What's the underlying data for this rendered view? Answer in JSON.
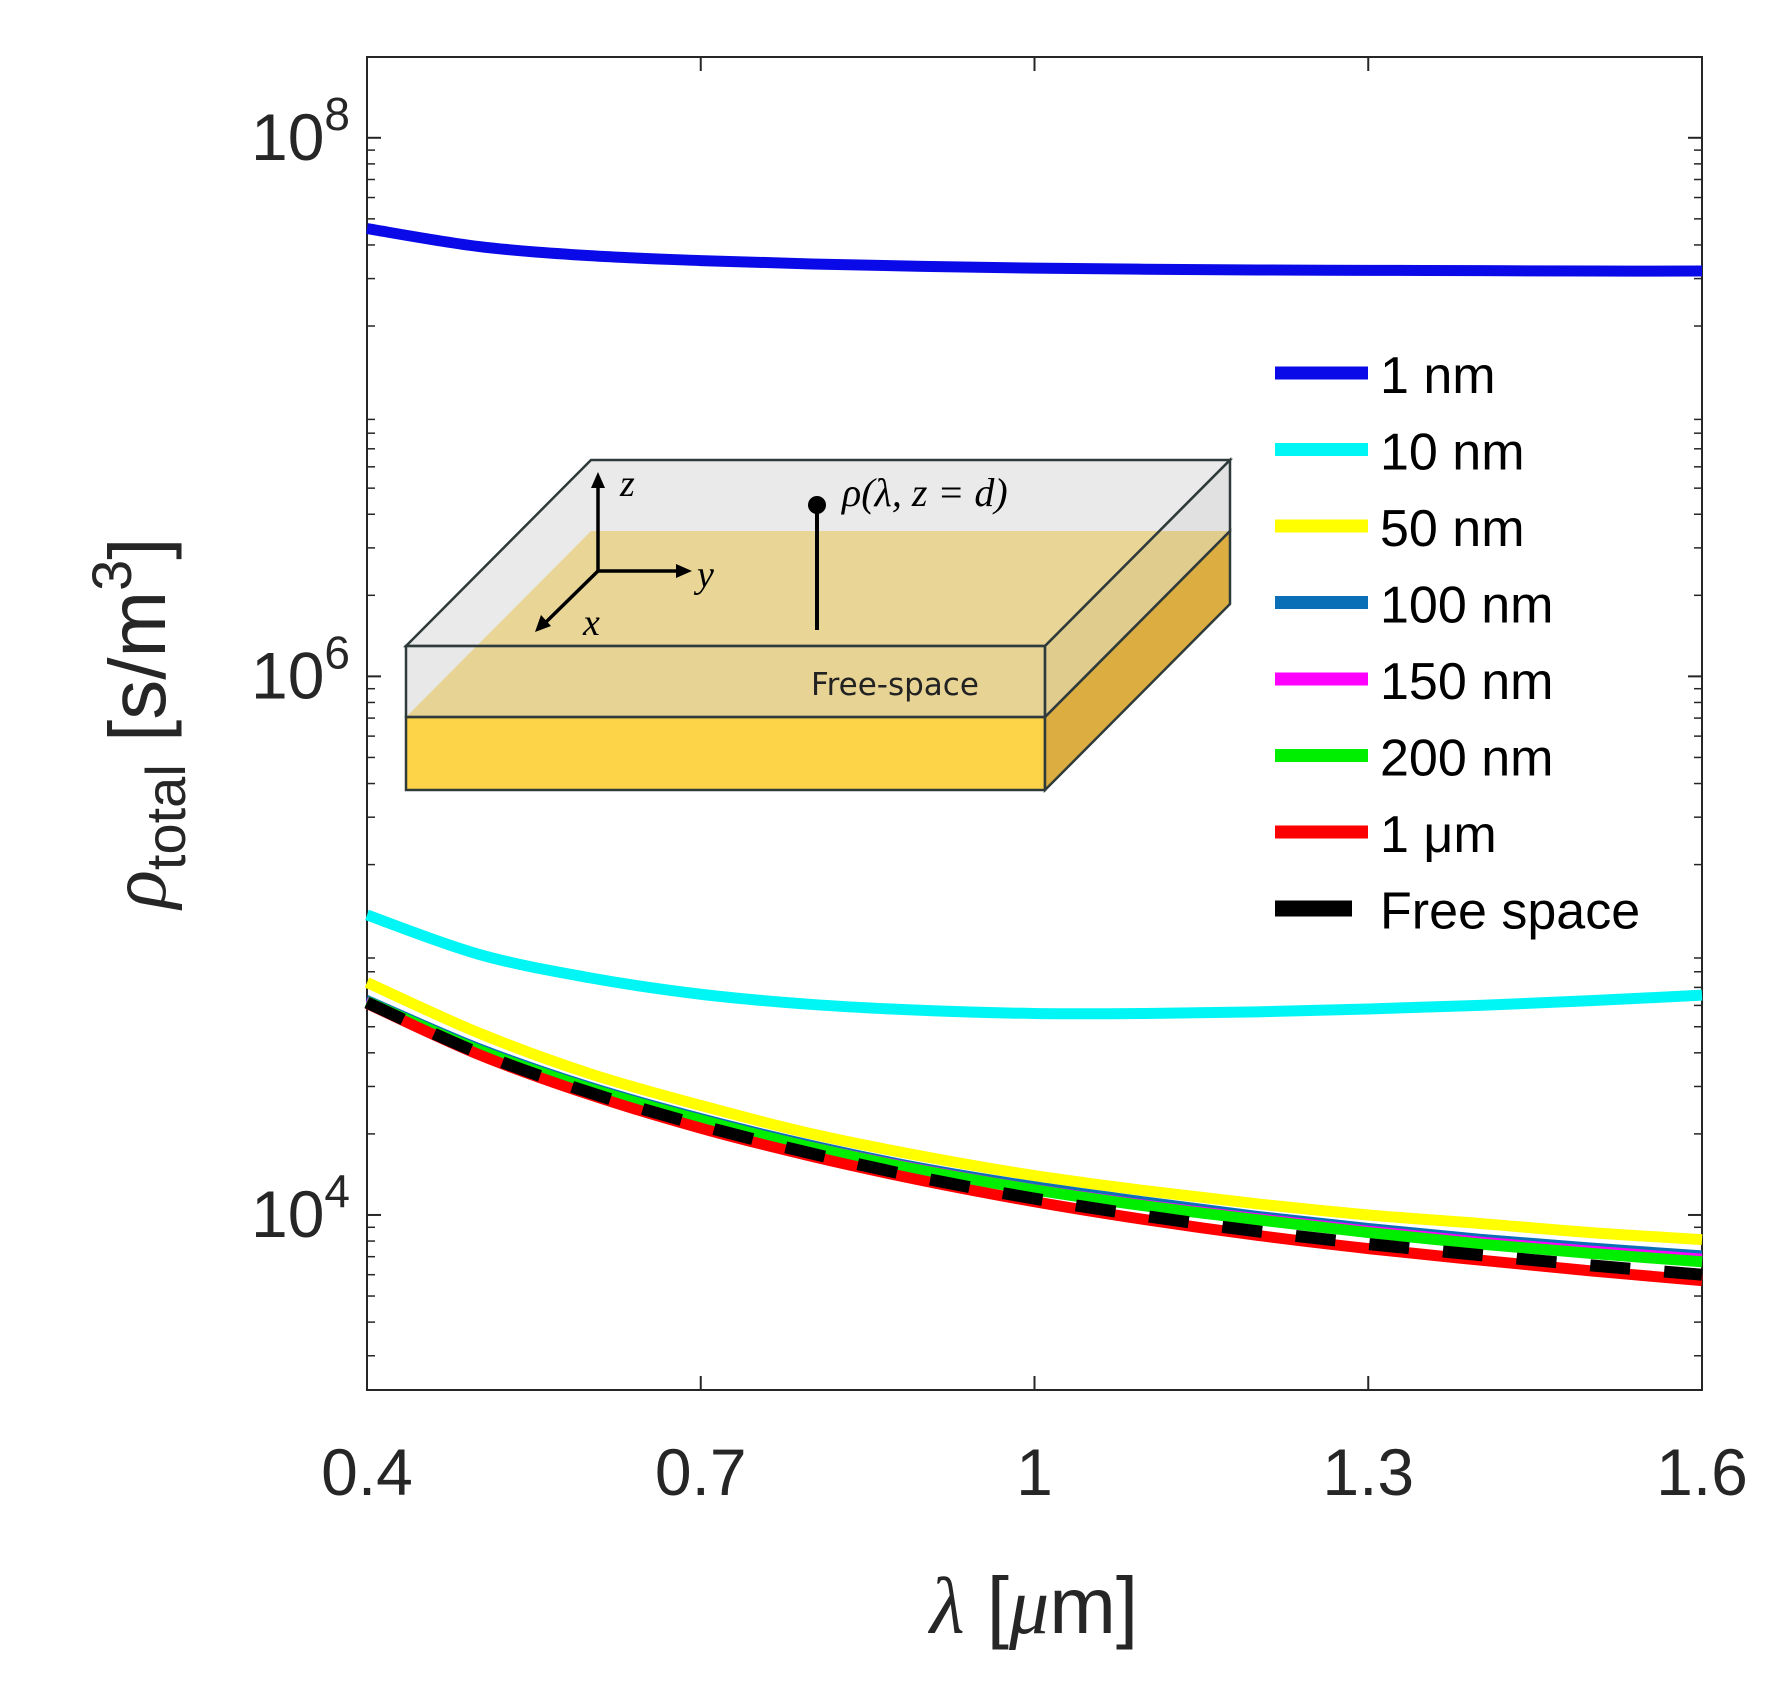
{
  "chart_data": {
    "type": "line",
    "title": "",
    "xlabel": {
      "symbol": "λ",
      "unit_open": " [",
      "unit_mu": "μ",
      "unit_rest": "m]"
    },
    "ylabel": {
      "symbol": "ρ",
      "subscript": "total",
      "unit_open": " [s/m",
      "unit_sup": "3",
      "unit_close": "]"
    },
    "xlim": [
      0.4,
      1.6
    ],
    "ylim_log10": [
      3.35,
      8.3
    ],
    "yscale": "log",
    "x_ticks": [
      0.4,
      0.7,
      1.0,
      1.3,
      1.6
    ],
    "x_tick_labels": [
      "0.4",
      "0.7",
      "1",
      "1.3",
      "1.6"
    ],
    "y_ticks": [
      {
        "base": "10",
        "exp": "4",
        "log": 4
      },
      {
        "base": "10",
        "exp": "6",
        "log": 6
      },
      {
        "base": "10",
        "exp": "8",
        "log": 8
      }
    ],
    "x": [
      0.4,
      0.5,
      0.6,
      0.7,
      0.8,
      0.9,
      1.0,
      1.1,
      1.2,
      1.3,
      1.4,
      1.5,
      1.6
    ],
    "series": [
      {
        "name": "1 nm",
        "color": "#0a0ae8",
        "dashed": false,
        "values": [
          46000000.0,
          39500000.0,
          36500000.0,
          35000000.0,
          34000000.0,
          33300000.0,
          32800000.0,
          32500000.0,
          32300000.0,
          32200000.0,
          32100000.0,
          32000000.0,
          32000000.0
        ]
      },
      {
        "name": "10 nm",
        "color": "#00f5f5",
        "dashed": false,
        "values": [
          130000.0,
          93000.0,
          76000.0,
          66000.0,
          60500.0,
          57500.0,
          56000.0,
          56000.0,
          56800.0,
          58200.0,
          60000.0,
          62500.0,
          65500.0
        ]
      },
      {
        "name": "50 nm",
        "color": "#ffff00",
        "dashed": false,
        "values": [
          73000.0,
          47500.0,
          33500.0,
          25500.0,
          20000.0,
          16500.0,
          14000.0,
          12300.0,
          11000.0,
          10000.0,
          9300.0,
          8600.0,
          8100.0
        ]
      },
      {
        "name": "100 nm",
        "color": "#0b6fb8",
        "dashed": false,
        "values": [
          64000.0,
          42500.0,
          30500.0,
          23300.0,
          18500.0,
          15200.0,
          13000.0,
          11400.0,
          10100.0,
          9100.0,
          8300.0,
          7700.0,
          7200.0
        ]
      },
      {
        "name": "150 nm",
        "color": "#ff00ff",
        "dashed": false,
        "values": [
          63000.0,
          41500.0,
          30000.0,
          22800.0,
          18200.0,
          15000.0,
          12700.0,
          11100.0,
          9900.0,
          8900.0,
          8100.0,
          7500.0,
          7000.0
        ]
      },
      {
        "name": "200 nm",
        "color": "#00ee00",
        "dashed": false,
        "values": [
          62000.0,
          41000.0,
          29500.0,
          22500.0,
          17800.0,
          14600.0,
          12400.0,
          10800.0,
          9600.0,
          8600.0,
          7800.0,
          7200.0,
          6700.0
        ]
      },
      {
        "name": "1 μm",
        "color": "#ff0000",
        "dashed": false,
        "values": [
          61000.0,
          39500.0,
          28000.0,
          21000.0,
          16500.0,
          13400.0,
          11200.0,
          9600.0,
          8400.0,
          7500.0,
          6800.0,
          6200.0,
          5700.0
        ]
      },
      {
        "name": "Free space",
        "color": "#000000",
        "dashed": true,
        "values": [
          61500.0,
          40000.0,
          28500.0,
          21500.0,
          16900.0,
          13700.0,
          11500.0,
          9900.0,
          8700.0,
          7800.0,
          7100.0,
          6500.0,
          6000.0
        ]
      }
    ],
    "legend": {
      "position": "right"
    }
  },
  "inset": {
    "axis_z": "z",
    "axis_y": "y",
    "axis_x": "x",
    "probe_label": "ρ(λ, z = d)",
    "region_label": "Free-space",
    "colors": {
      "gold": "#fdd348",
      "gold_side": "#dcae41",
      "glass_top": "#dcdcdc",
      "glass_side": "#c8c8c8",
      "edge": "#2f3a3a"
    }
  }
}
